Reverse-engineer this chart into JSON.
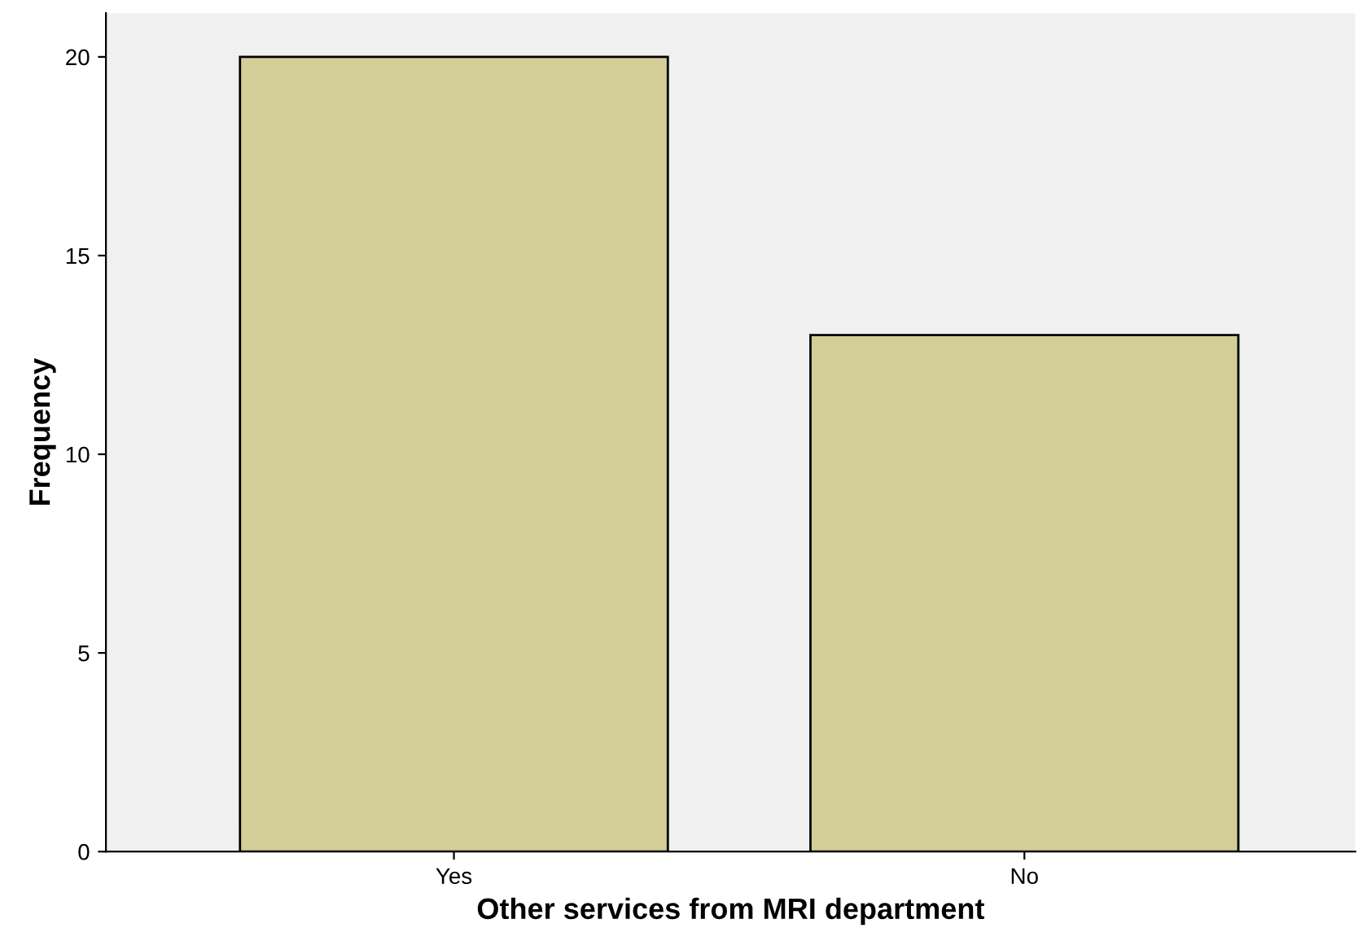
{
  "chart_data": {
    "type": "bar",
    "xlabel": "Other services from MRI department",
    "ylabel": "Frequency",
    "categories": [
      "Yes",
      "No"
    ],
    "values": [
      20,
      13
    ],
    "color": "#d3ce97",
    "ylim": [
      0,
      21.1
    ],
    "yticks": [
      0,
      5,
      10,
      15,
      20
    ],
    "grid": false
  }
}
